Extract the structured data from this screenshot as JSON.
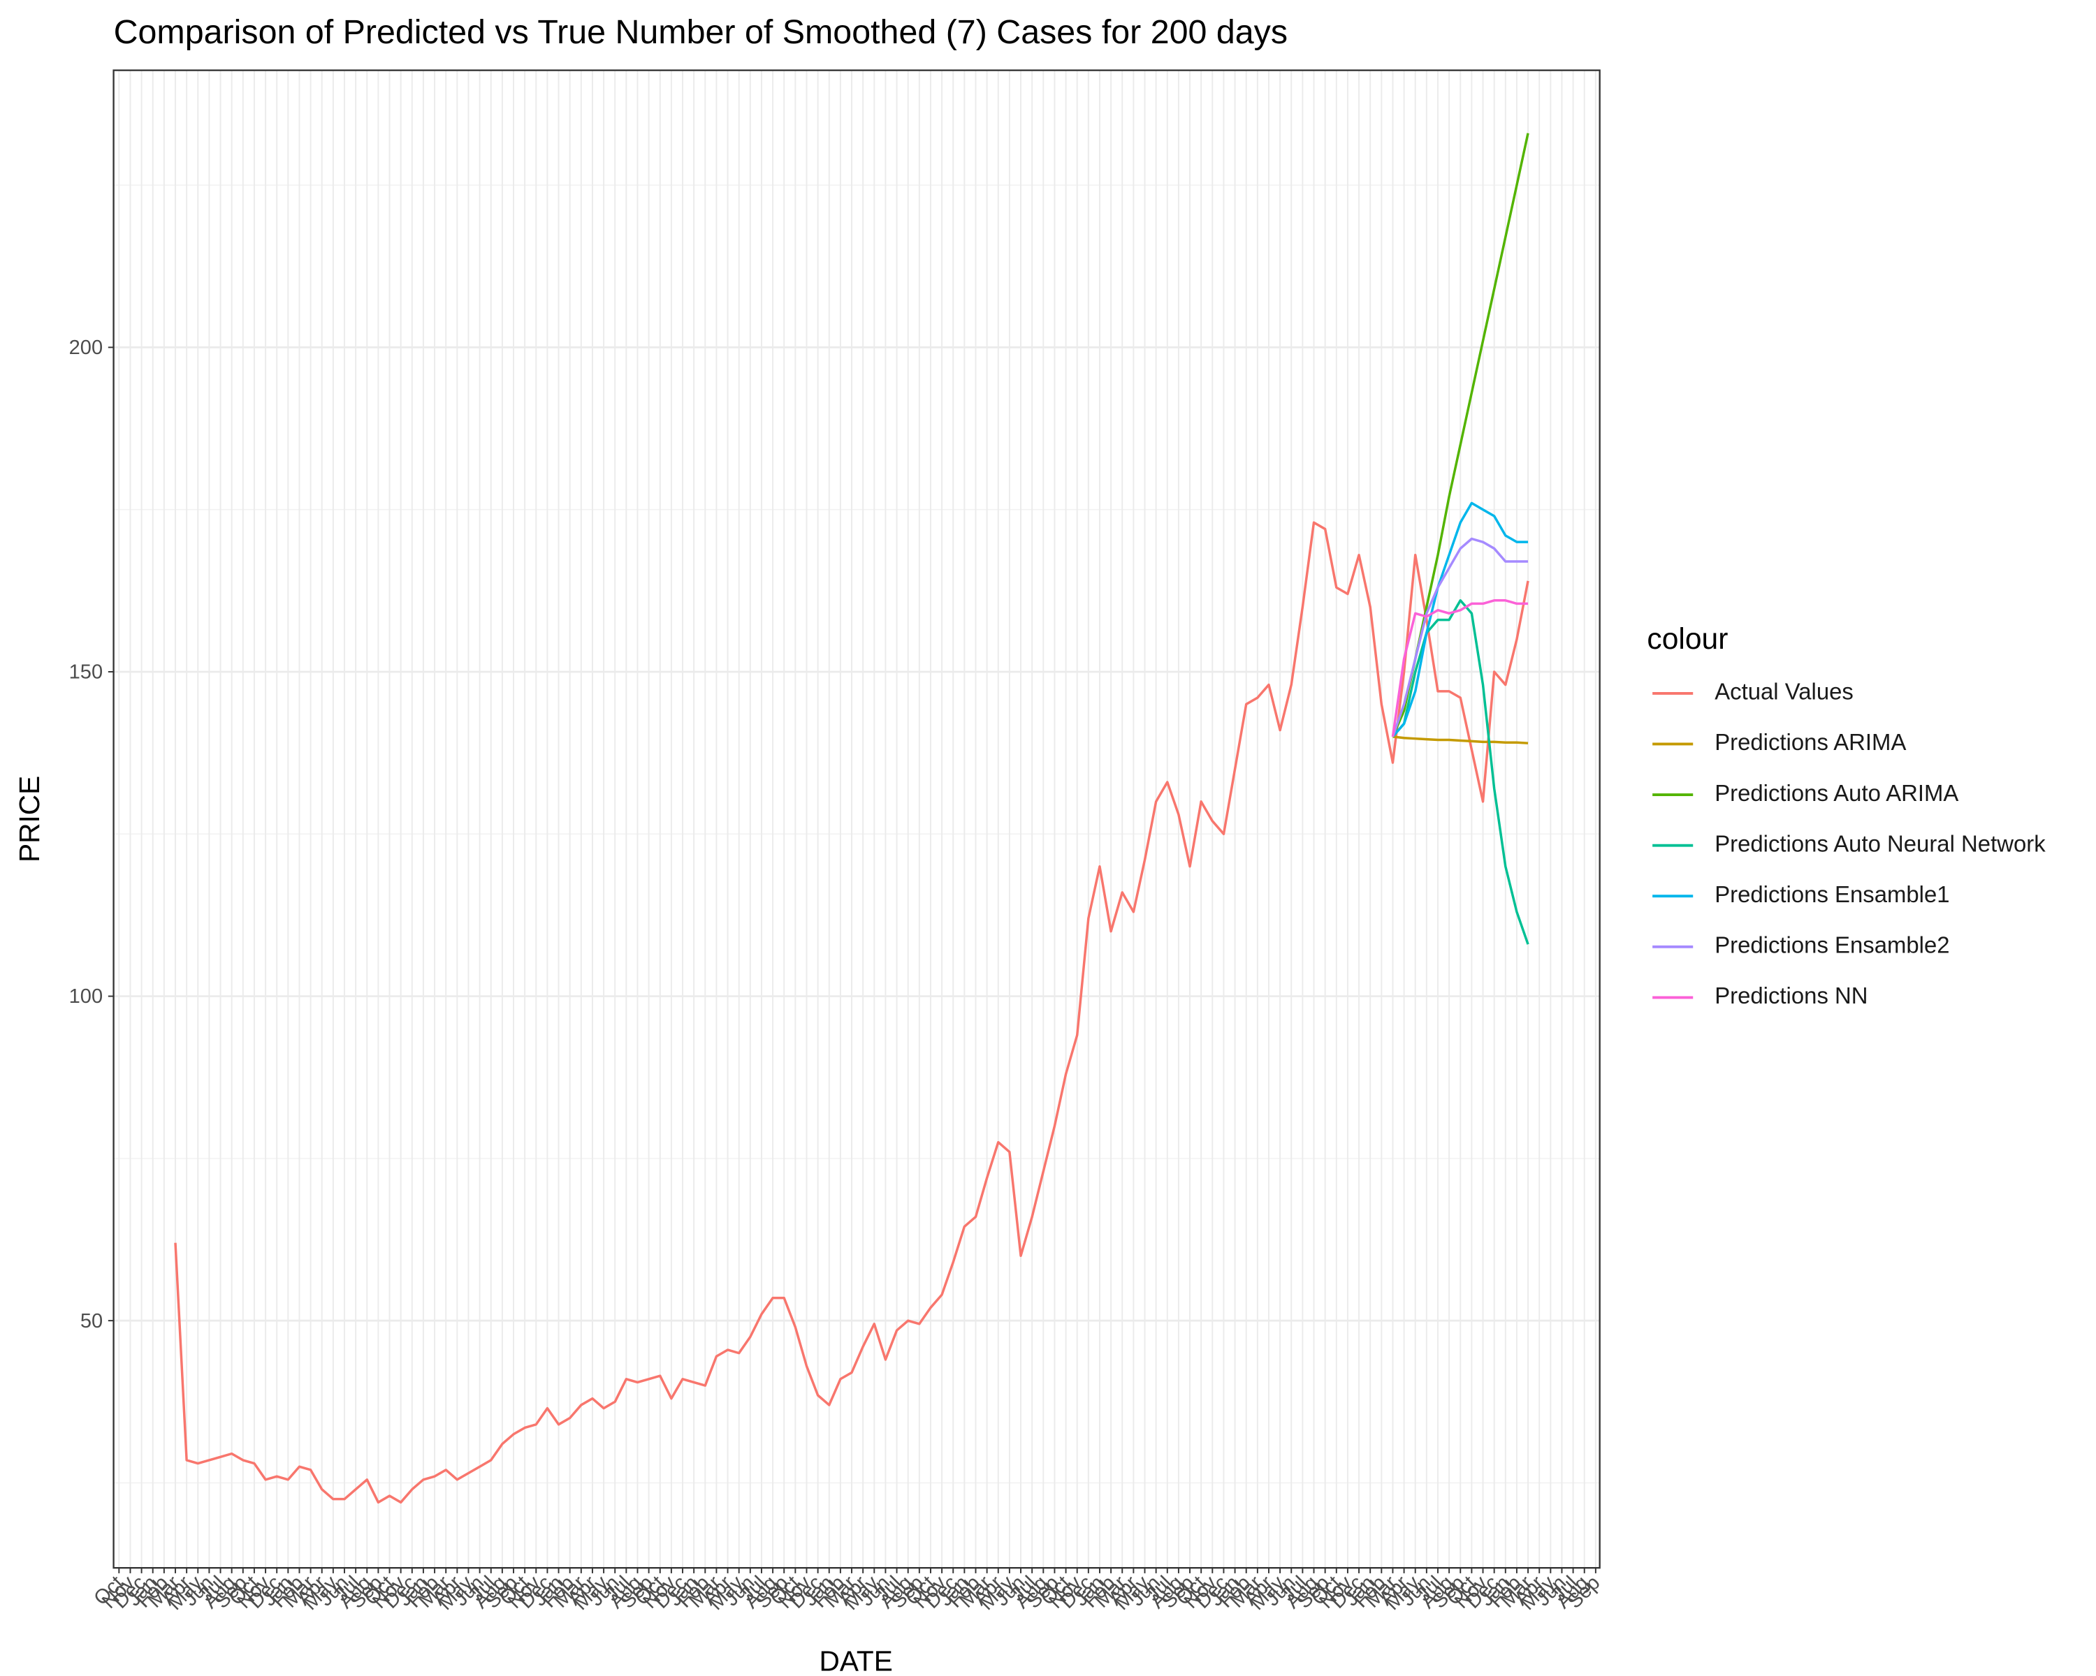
{
  "chart_data": {
    "type": "line",
    "title": "Comparison of Predicted vs True Number of Smoothed (7) Cases for 200 days",
    "x_label": "DATE",
    "y_label": "PRICE",
    "legend_title": "colour",
    "categories": [
      "Oct",
      "Nov",
      "Dec",
      "Jan",
      "Feb",
      "Mar",
      "Apr",
      "May",
      "Jun",
      "Jul",
      "Aug",
      "Sep",
      "Oct",
      "Nov",
      "Dec",
      "Jan",
      "Feb",
      "Mar",
      "Apr",
      "May",
      "Jun",
      "Jul",
      "Aug",
      "Sep",
      "Oct",
      "Nov",
      "Dec",
      "Jan",
      "Feb",
      "Mar",
      "Apr",
      "May",
      "Jun",
      "Jul",
      "Aug",
      "Sep",
      "Oct",
      "Nov",
      "Dec",
      "Jan",
      "Feb",
      "Mar",
      "Apr",
      "May",
      "Jun",
      "Jul",
      "Aug",
      "Sep",
      "Oct",
      "Nov",
      "Dec",
      "Jan",
      "Feb",
      "Mar",
      "Apr",
      "May",
      "Jun",
      "Jul",
      "Aug",
      "Sep",
      "Oct",
      "Nov",
      "Dec",
      "Jan",
      "Feb",
      "Mar",
      "Apr",
      "May",
      "Jun",
      "Jul",
      "Aug",
      "Sep",
      "Oct",
      "Nov",
      "Dec",
      "Jan",
      "Feb",
      "Mar",
      "Apr",
      "May",
      "Jun",
      "Jul",
      "Aug",
      "Sep",
      "Oct",
      "Nov",
      "Dec",
      "Jan",
      "Feb",
      "Mar",
      "Apr",
      "May",
      "Jun",
      "Jul",
      "Aug",
      "Sep",
      "Oct",
      "Nov",
      "Dec",
      "Jan",
      "Feb",
      "Mar",
      "Apr",
      "May",
      "Jun",
      "Jul",
      "Aug",
      "Sep",
      "Oct",
      "Nov",
      "Dec",
      "Jan",
      "Feb",
      "Mar",
      "Apr",
      "May",
      "Jun",
      "Jul",
      "Aug",
      "Sep",
      "Oct",
      "Nov",
      "Dec",
      "Jan",
      "Feb",
      "Mar",
      "Apr",
      "May",
      "Jun",
      "Jul",
      "Aug",
      "Sep"
    ],
    "ylim": [
      11.9,
      242.7
    ],
    "yticks": [
      50,
      100,
      150,
      200
    ],
    "minor_yticks": [
      25,
      75,
      125,
      175,
      225
    ],
    "grid": true,
    "legend_position": "right",
    "series": [
      {
        "name": "Actual Values",
        "color": "#F8766D",
        "values": [
          null,
          null,
          null,
          null,
          null,
          62,
          28.5,
          28,
          28.5,
          29,
          29.5,
          28.5,
          28,
          25.5,
          26,
          25.5,
          27.5,
          27,
          24,
          22.5,
          22.5,
          24,
          25.5,
          22,
          23,
          22,
          24,
          25.5,
          26,
          27,
          25.5,
          26.5,
          27.5,
          28.5,
          31,
          32.5,
          33.5,
          34,
          36.5,
          34,
          35,
          37,
          38,
          36.5,
          37.5,
          41,
          40.5,
          41,
          41.5,
          38,
          41,
          40.5,
          40,
          44.5,
          45.5,
          45,
          47.5,
          51,
          53.5,
          53.5,
          49,
          43,
          38.5,
          37,
          41,
          42,
          46,
          49.5,
          44,
          48.5,
          50,
          49.5,
          52,
          54,
          59,
          64.5,
          66,
          72,
          77.5,
          76,
          60,
          66,
          73,
          80,
          88,
          94,
          112,
          120,
          110,
          116,
          113,
          121,
          130,
          133,
          128,
          120,
          130,
          127,
          125,
          135,
          145,
          146,
          148,
          141,
          148,
          160,
          173,
          172,
          163,
          162,
          168,
          160,
          145,
          136,
          150,
          168,
          158,
          147,
          147,
          146,
          138,
          130,
          150,
          148,
          155,
          164,
          null,
          null,
          null,
          null,
          null,
          null
        ]
      },
      {
        "name": "Predictions ARIMA",
        "color": "#C49A00",
        "values": [
          null,
          null,
          null,
          null,
          null,
          null,
          null,
          null,
          null,
          null,
          null,
          null,
          null,
          null,
          null,
          null,
          null,
          null,
          null,
          null,
          null,
          null,
          null,
          null,
          null,
          null,
          null,
          null,
          null,
          null,
          null,
          null,
          null,
          null,
          null,
          null,
          null,
          null,
          null,
          null,
          null,
          null,
          null,
          null,
          null,
          null,
          null,
          null,
          null,
          null,
          null,
          null,
          null,
          null,
          null,
          null,
          null,
          null,
          null,
          null,
          null,
          null,
          null,
          null,
          null,
          null,
          null,
          null,
          null,
          null,
          null,
          null,
          null,
          null,
          null,
          null,
          null,
          null,
          null,
          null,
          null,
          null,
          null,
          null,
          null,
          null,
          null,
          null,
          null,
          null,
          null,
          null,
          null,
          null,
          null,
          null,
          null,
          null,
          null,
          null,
          null,
          null,
          null,
          null,
          null,
          null,
          null,
          null,
          null,
          null,
          null,
          null,
          null,
          140,
          139.8,
          139.7,
          139.6,
          139.5,
          139.5,
          139.4,
          139.3,
          139.2,
          139.2,
          139.1,
          139.1,
          139,
          null,
          null,
          null,
          null,
          null,
          null
        ]
      },
      {
        "name": "Predictions Auto ARIMA",
        "color": "#53B400",
        "values": [
          null,
          null,
          null,
          null,
          null,
          null,
          null,
          null,
          null,
          null,
          null,
          null,
          null,
          null,
          null,
          null,
          null,
          null,
          null,
          null,
          null,
          null,
          null,
          null,
          null,
          null,
          null,
          null,
          null,
          null,
          null,
          null,
          null,
          null,
          null,
          null,
          null,
          null,
          null,
          null,
          null,
          null,
          null,
          null,
          null,
          null,
          null,
          null,
          null,
          null,
          null,
          null,
          null,
          null,
          null,
          null,
          null,
          null,
          null,
          null,
          null,
          null,
          null,
          null,
          null,
          null,
          null,
          null,
          null,
          null,
          null,
          null,
          null,
          null,
          null,
          null,
          null,
          null,
          null,
          null,
          null,
          null,
          null,
          null,
          null,
          null,
          null,
          null,
          null,
          null,
          null,
          null,
          null,
          null,
          null,
          null,
          null,
          null,
          null,
          null,
          null,
          null,
          null,
          null,
          null,
          null,
          null,
          null,
          null,
          null,
          null,
          null,
          null,
          140,
          144,
          152,
          160,
          168,
          177,
          185,
          193,
          201,
          209,
          217,
          225,
          233,
          null,
          null,
          null,
          null,
          null,
          null
        ]
      },
      {
        "name": "Predictions Auto Neural Network",
        "color": "#00C094",
        "values": [
          null,
          null,
          null,
          null,
          null,
          null,
          null,
          null,
          null,
          null,
          null,
          null,
          null,
          null,
          null,
          null,
          null,
          null,
          null,
          null,
          null,
          null,
          null,
          null,
          null,
          null,
          null,
          null,
          null,
          null,
          null,
          null,
          null,
          null,
          null,
          null,
          null,
          null,
          null,
          null,
          null,
          null,
          null,
          null,
          null,
          null,
          null,
          null,
          null,
          null,
          null,
          null,
          null,
          null,
          null,
          null,
          null,
          null,
          null,
          null,
          null,
          null,
          null,
          null,
          null,
          null,
          null,
          null,
          null,
          null,
          null,
          null,
          null,
          null,
          null,
          null,
          null,
          null,
          null,
          null,
          null,
          null,
          null,
          null,
          null,
          null,
          null,
          null,
          null,
          null,
          null,
          null,
          null,
          null,
          null,
          null,
          null,
          null,
          null,
          null,
          null,
          null,
          null,
          null,
          null,
          null,
          null,
          null,
          null,
          null,
          null,
          null,
          null,
          140,
          142,
          150,
          156,
          158,
          158,
          161,
          159,
          148,
          132,
          120,
          113,
          108,
          null,
          null,
          null,
          null,
          null,
          null
        ]
      },
      {
        "name": "Predictions Ensamble1",
        "color": "#00B6EB",
        "values": [
          null,
          null,
          null,
          null,
          null,
          null,
          null,
          null,
          null,
          null,
          null,
          null,
          null,
          null,
          null,
          null,
          null,
          null,
          null,
          null,
          null,
          null,
          null,
          null,
          null,
          null,
          null,
          null,
          null,
          null,
          null,
          null,
          null,
          null,
          null,
          null,
          null,
          null,
          null,
          null,
          null,
          null,
          null,
          null,
          null,
          null,
          null,
          null,
          null,
          null,
          null,
          null,
          null,
          null,
          null,
          null,
          null,
          null,
          null,
          null,
          null,
          null,
          null,
          null,
          null,
          null,
          null,
          null,
          null,
          null,
          null,
          null,
          null,
          null,
          null,
          null,
          null,
          null,
          null,
          null,
          null,
          null,
          null,
          null,
          null,
          null,
          null,
          null,
          null,
          null,
          null,
          null,
          null,
          null,
          null,
          null,
          null,
          null,
          null,
          null,
          null,
          null,
          null,
          null,
          null,
          null,
          null,
          null,
          null,
          null,
          null,
          null,
          null,
          140,
          142,
          147,
          156,
          163,
          168,
          173,
          176,
          175,
          174,
          171,
          170,
          170,
          null,
          null,
          null,
          null,
          null,
          null
        ]
      },
      {
        "name": "Predictions Ensamble2",
        "color": "#A58AFF",
        "values": [
          null,
          null,
          null,
          null,
          null,
          null,
          null,
          null,
          null,
          null,
          null,
          null,
          null,
          null,
          null,
          null,
          null,
          null,
          null,
          null,
          null,
          null,
          null,
          null,
          null,
          null,
          null,
          null,
          null,
          null,
          null,
          null,
          null,
          null,
          null,
          null,
          null,
          null,
          null,
          null,
          null,
          null,
          null,
          null,
          null,
          null,
          null,
          null,
          null,
          null,
          null,
          null,
          null,
          null,
          null,
          null,
          null,
          null,
          null,
          null,
          null,
          null,
          null,
          null,
          null,
          null,
          null,
          null,
          null,
          null,
          null,
          null,
          null,
          null,
          null,
          null,
          null,
          null,
          null,
          null,
          null,
          null,
          null,
          null,
          null,
          null,
          null,
          null,
          null,
          null,
          null,
          null,
          null,
          null,
          null,
          null,
          null,
          null,
          null,
          null,
          null,
          null,
          null,
          null,
          null,
          null,
          null,
          null,
          null,
          null,
          null,
          null,
          null,
          140,
          145,
          152,
          159,
          163,
          166,
          169,
          170.5,
          170,
          169,
          167,
          167,
          167,
          null,
          null,
          null,
          null,
          null,
          null
        ]
      },
      {
        "name": "Predictions NN",
        "color": "#FB61D7",
        "values": [
          null,
          null,
          null,
          null,
          null,
          null,
          null,
          null,
          null,
          null,
          null,
          null,
          null,
          null,
          null,
          null,
          null,
          null,
          null,
          null,
          null,
          null,
          null,
          null,
          null,
          null,
          null,
          null,
          null,
          null,
          null,
          null,
          null,
          null,
          null,
          null,
          null,
          null,
          null,
          null,
          null,
          null,
          null,
          null,
          null,
          null,
          null,
          null,
          null,
          null,
          null,
          null,
          null,
          null,
          null,
          null,
          null,
          null,
          null,
          null,
          null,
          null,
          null,
          null,
          null,
          null,
          null,
          null,
          null,
          null,
          null,
          null,
          null,
          null,
          null,
          null,
          null,
          null,
          null,
          null,
          null,
          null,
          null,
          null,
          null,
          null,
          null,
          null,
          null,
          null,
          null,
          null,
          null,
          null,
          null,
          null,
          null,
          null,
          null,
          null,
          null,
          null,
          null,
          null,
          null,
          null,
          null,
          null,
          null,
          null,
          null,
          null,
          null,
          140,
          152,
          159,
          158.5,
          159.5,
          159,
          159.5,
          160.5,
          160.5,
          161,
          161,
          160.5,
          160.5,
          null,
          null,
          null,
          null,
          null,
          null
        ]
      }
    ]
  }
}
